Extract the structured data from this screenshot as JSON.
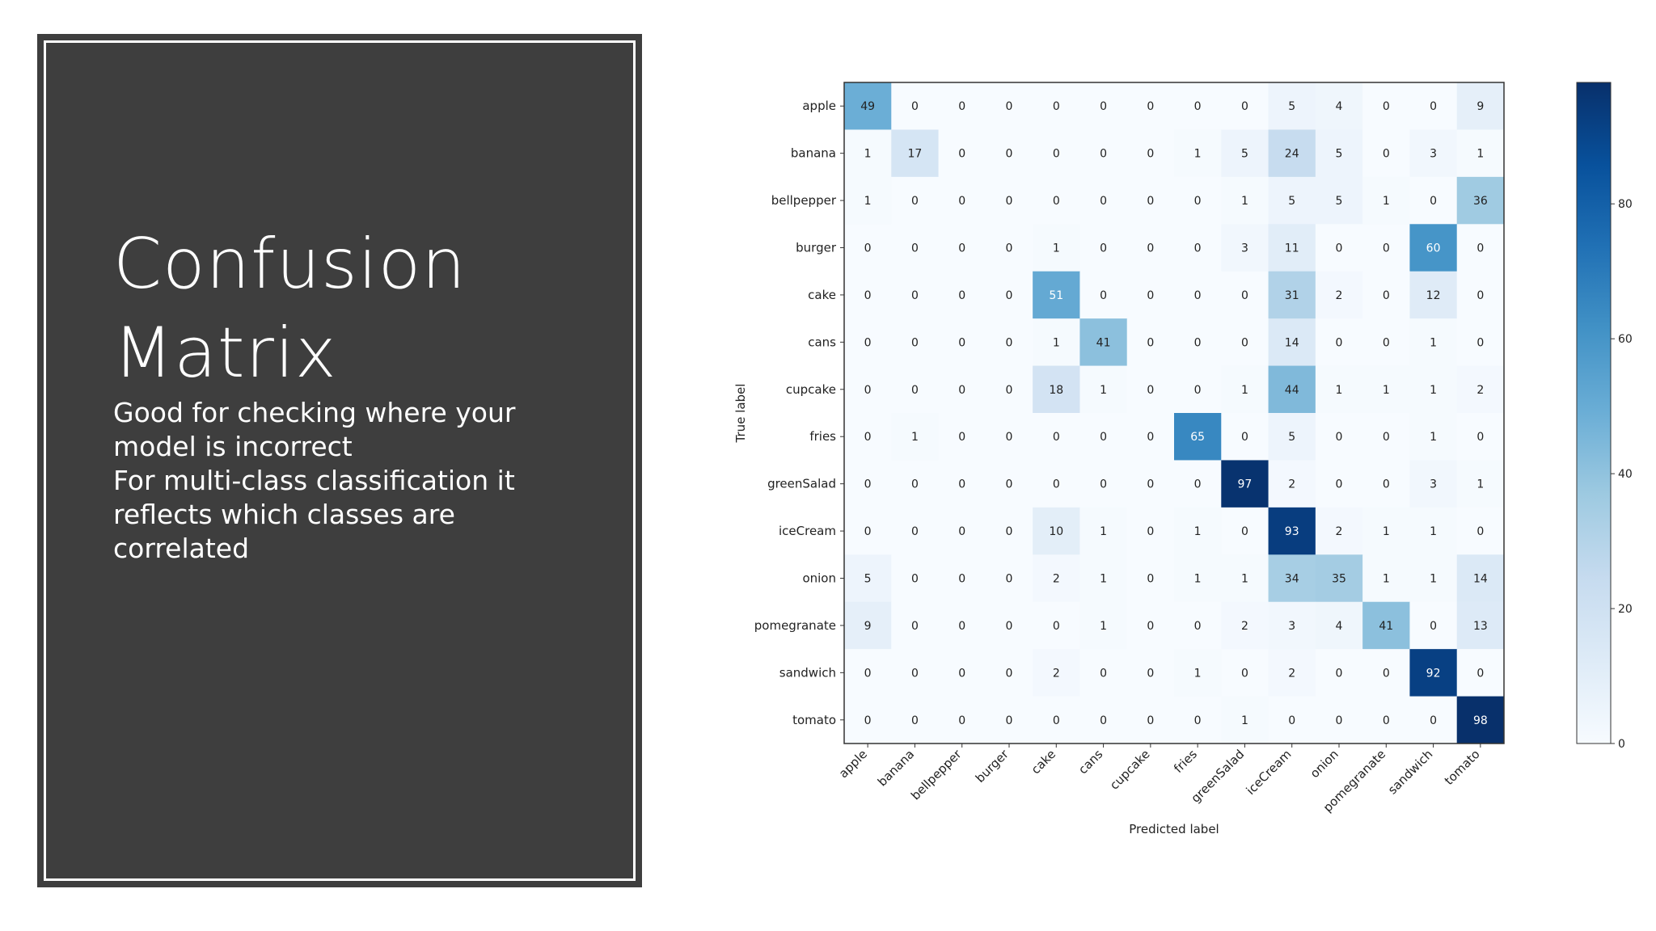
{
  "slide": {
    "title_line1": "Confusion",
    "title_line2": "Matrix",
    "body_lines": [
      "Good for checking where your",
      "model is incorrect",
      "For multi-class classification it",
      "reflects which classes are",
      "correlated"
    ]
  },
  "colors": {
    "panel_background": "#3e3e3e",
    "panel_border": "#ffffff",
    "colormap": "Blues"
  },
  "chart_data": {
    "type": "heatmap",
    "title": "",
    "xlabel": "Predicted label",
    "ylabel": "True label",
    "x_categories": [
      "apple",
      "banana",
      "bellpepper",
      "burger",
      "cake",
      "cans",
      "cupcake",
      "fries",
      "greenSalad",
      "iceCream",
      "onion",
      "pomegranate",
      "sandwich",
      "tomato"
    ],
    "y_categories": [
      "apple",
      "banana",
      "bellpepper",
      "burger",
      "cake",
      "cans",
      "cupcake",
      "fries",
      "greenSalad",
      "iceCream",
      "onion",
      "pomegranate",
      "sandwich",
      "tomato"
    ],
    "values": [
      [
        49,
        0,
        0,
        0,
        0,
        0,
        0,
        0,
        0,
        5,
        4,
        0,
        0,
        9
      ],
      [
        1,
        17,
        0,
        0,
        0,
        0,
        0,
        1,
        5,
        24,
        5,
        0,
        3,
        1
      ],
      [
        1,
        0,
        0,
        0,
        0,
        0,
        0,
        0,
        1,
        5,
        5,
        1,
        0,
        36
      ],
      [
        0,
        0,
        0,
        0,
        1,
        0,
        0,
        0,
        3,
        11,
        0,
        0,
        60,
        0
      ],
      [
        0,
        0,
        0,
        0,
        51,
        0,
        0,
        0,
        0,
        31,
        2,
        0,
        12,
        0
      ],
      [
        0,
        0,
        0,
        0,
        1,
        41,
        0,
        0,
        0,
        14,
        0,
        0,
        1,
        0
      ],
      [
        0,
        0,
        0,
        0,
        18,
        1,
        0,
        0,
        1,
        44,
        1,
        1,
        1,
        2
      ],
      [
        0,
        1,
        0,
        0,
        0,
        0,
        0,
        65,
        0,
        5,
        0,
        0,
        1,
        0
      ],
      [
        0,
        0,
        0,
        0,
        0,
        0,
        0,
        0,
        97,
        2,
        0,
        0,
        3,
        1
      ],
      [
        0,
        0,
        0,
        0,
        10,
        1,
        0,
        1,
        0,
        93,
        2,
        1,
        1,
        0
      ],
      [
        5,
        0,
        0,
        0,
        2,
        1,
        0,
        1,
        1,
        34,
        35,
        1,
        1,
        14
      ],
      [
        9,
        0,
        0,
        0,
        0,
        1,
        0,
        0,
        2,
        3,
        4,
        41,
        0,
        13
      ],
      [
        0,
        0,
        0,
        0,
        2,
        0,
        0,
        1,
        0,
        2,
        0,
        0,
        92,
        0
      ],
      [
        0,
        0,
        0,
        0,
        0,
        0,
        0,
        0,
        1,
        0,
        0,
        0,
        0,
        98
      ]
    ],
    "colorbar": {
      "range": [
        0,
        98
      ],
      "ticks": [
        0,
        20,
        40,
        60,
        80
      ]
    }
  }
}
